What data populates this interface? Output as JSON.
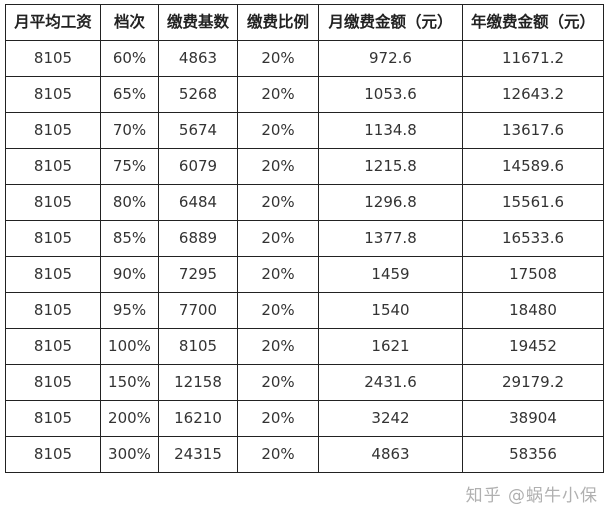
{
  "table": {
    "headers": [
      "月平均工资",
      "档次",
      "缴费基数",
      "缴费比例",
      "月缴费金额（元）",
      "年缴费金额（元）"
    ],
    "rows": [
      [
        "8105",
        "60%",
        "4863",
        "20%",
        "972.6",
        "11671.2"
      ],
      [
        "8105",
        "65%",
        "5268",
        "20%",
        "1053.6",
        "12643.2"
      ],
      [
        "8105",
        "70%",
        "5674",
        "20%",
        "1134.8",
        "13617.6"
      ],
      [
        "8105",
        "75%",
        "6079",
        "20%",
        "1215.8",
        "14589.6"
      ],
      [
        "8105",
        "80%",
        "6484",
        "20%",
        "1296.8",
        "15561.6"
      ],
      [
        "8105",
        "85%",
        "6889",
        "20%",
        "1377.8",
        "16533.6"
      ],
      [
        "8105",
        "90%",
        "7295",
        "20%",
        "1459",
        "17508"
      ],
      [
        "8105",
        "95%",
        "7700",
        "20%",
        "1540",
        "18480"
      ],
      [
        "8105",
        "100%",
        "8105",
        "20%",
        "1621",
        "19452"
      ],
      [
        "8105",
        "150%",
        "12158",
        "20%",
        "2431.6",
        "29179.2"
      ],
      [
        "8105",
        "200%",
        "16210",
        "20%",
        "3242",
        "38904"
      ],
      [
        "8105",
        "300%",
        "24315",
        "20%",
        "4863",
        "58356"
      ]
    ]
  },
  "watermark": "知乎 @蜗牛小保"
}
